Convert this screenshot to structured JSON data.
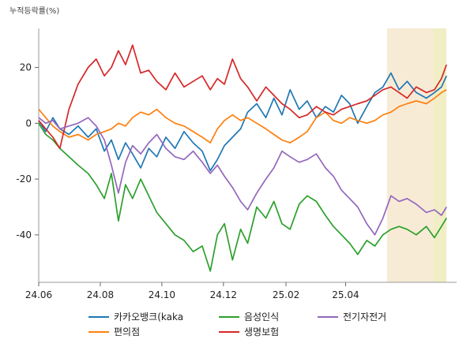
{
  "chart_data": {
    "type": "line",
    "unit_label": "누적등락률(%)",
    "x_ticks": [
      "24.06",
      "24.08",
      "24.10",
      "24.12",
      "25.02",
      "25.04"
    ],
    "x_range": [
      "2024-06-01",
      "2025-07-20"
    ],
    "ylim": [
      -57,
      34
    ],
    "y_ticks": [
      20,
      0,
      -20,
      -40
    ],
    "y_tick_labels": [
      "20",
      "0",
      "-20",
      "-40"
    ],
    "grid": false,
    "legend_position": "bottom",
    "highlight_bands": [
      {
        "start": "2025-05-12",
        "end": "2025-06-27",
        "color": "#f5e6cc"
      },
      {
        "start": "2025-06-27",
        "end": "2025-07-10",
        "color": "#eeeab8"
      }
    ],
    "series": [
      {
        "name": "카카오뱅크(kaka",
        "color": "#1f77b4",
        "points": [
          [
            "2024-06-01",
            1
          ],
          [
            "2024-06-08",
            -3
          ],
          [
            "2024-06-15",
            2
          ],
          [
            "2024-06-22",
            -2
          ],
          [
            "2024-07-01",
            -4
          ],
          [
            "2024-07-10",
            -1
          ],
          [
            "2024-07-20",
            -5
          ],
          [
            "2024-07-28",
            -2
          ],
          [
            "2024-08-05",
            -10
          ],
          [
            "2024-08-12",
            -6
          ],
          [
            "2024-08-19",
            -13
          ],
          [
            "2024-08-26",
            -7
          ],
          [
            "2024-09-02",
            -11
          ],
          [
            "2024-09-10",
            -16
          ],
          [
            "2024-09-18",
            -9
          ],
          [
            "2024-09-26",
            -12
          ],
          [
            "2024-10-05",
            -5
          ],
          [
            "2024-10-14",
            -9
          ],
          [
            "2024-10-23",
            -3
          ],
          [
            "2024-11-01",
            -7
          ],
          [
            "2024-11-10",
            -10
          ],
          [
            "2024-11-18",
            -17
          ],
          [
            "2024-11-25",
            -13
          ],
          [
            "2024-12-02",
            -8
          ],
          [
            "2024-12-10",
            -5
          ],
          [
            "2024-12-18",
            -2
          ],
          [
            "2024-12-25",
            4
          ],
          [
            "2025-01-03",
            7
          ],
          [
            "2025-01-12",
            2
          ],
          [
            "2025-01-20",
            9
          ],
          [
            "2025-01-28",
            3
          ],
          [
            "2025-02-05",
            12
          ],
          [
            "2025-02-14",
            5
          ],
          [
            "2025-02-22",
            8
          ],
          [
            "2025-03-03",
            2
          ],
          [
            "2025-03-12",
            6
          ],
          [
            "2025-03-20",
            4
          ],
          [
            "2025-03-28",
            10
          ],
          [
            "2025-04-05",
            7
          ],
          [
            "2025-04-13",
            0
          ],
          [
            "2025-04-22",
            6
          ],
          [
            "2025-04-30",
            11
          ],
          [
            "2025-05-08",
            13
          ],
          [
            "2025-05-16",
            18
          ],
          [
            "2025-05-24",
            12
          ],
          [
            "2025-06-01",
            15
          ],
          [
            "2025-06-10",
            11
          ],
          [
            "2025-06-20",
            9
          ],
          [
            "2025-06-28",
            11
          ],
          [
            "2025-07-05",
            13
          ],
          [
            "2025-07-10",
            17
          ]
        ]
      },
      {
        "name": "편의점",
        "color": "#ff7f0e",
        "points": [
          [
            "2024-06-01",
            5
          ],
          [
            "2024-06-08",
            2
          ],
          [
            "2024-06-15",
            -1
          ],
          [
            "2024-06-22",
            -3
          ],
          [
            "2024-07-01",
            -5
          ],
          [
            "2024-07-10",
            -4
          ],
          [
            "2024-07-20",
            -6
          ],
          [
            "2024-07-28",
            -4
          ],
          [
            "2024-08-05",
            -3
          ],
          [
            "2024-08-12",
            -2
          ],
          [
            "2024-08-19",
            0
          ],
          [
            "2024-08-26",
            -1
          ],
          [
            "2024-09-02",
            2
          ],
          [
            "2024-09-10",
            4
          ],
          [
            "2024-09-18",
            3
          ],
          [
            "2024-09-26",
            5
          ],
          [
            "2024-10-05",
            2
          ],
          [
            "2024-10-14",
            0
          ],
          [
            "2024-10-23",
            -1
          ],
          [
            "2024-11-01",
            -3
          ],
          [
            "2024-11-10",
            -5
          ],
          [
            "2024-11-18",
            -7
          ],
          [
            "2024-11-25",
            -2
          ],
          [
            "2024-12-02",
            1
          ],
          [
            "2024-12-10",
            3
          ],
          [
            "2024-12-18",
            1
          ],
          [
            "2024-12-25",
            2
          ],
          [
            "2025-01-03",
            0
          ],
          [
            "2025-01-12",
            -2
          ],
          [
            "2025-01-20",
            -4
          ],
          [
            "2025-01-28",
            -6
          ],
          [
            "2025-02-05",
            -7
          ],
          [
            "2025-02-14",
            -5
          ],
          [
            "2025-02-22",
            -3
          ],
          [
            "2025-03-03",
            2
          ],
          [
            "2025-03-12",
            4
          ],
          [
            "2025-03-20",
            1
          ],
          [
            "2025-03-28",
            0
          ],
          [
            "2025-04-05",
            2
          ],
          [
            "2025-04-13",
            1
          ],
          [
            "2025-04-22",
            0
          ],
          [
            "2025-04-30",
            1
          ],
          [
            "2025-05-08",
            3
          ],
          [
            "2025-05-16",
            4
          ],
          [
            "2025-05-24",
            6
          ],
          [
            "2025-06-01",
            7
          ],
          [
            "2025-06-10",
            8
          ],
          [
            "2025-06-20",
            7
          ],
          [
            "2025-06-28",
            9
          ],
          [
            "2025-07-05",
            11
          ],
          [
            "2025-07-10",
            12
          ]
        ]
      },
      {
        "name": "음성인식",
        "color": "#2ca02c",
        "points": [
          [
            "2024-06-01",
            0
          ],
          [
            "2024-06-08",
            -4
          ],
          [
            "2024-06-15",
            -6
          ],
          [
            "2024-06-22",
            -9
          ],
          [
            "2024-07-01",
            -12
          ],
          [
            "2024-07-10",
            -15
          ],
          [
            "2024-07-20",
            -18
          ],
          [
            "2024-07-28",
            -22
          ],
          [
            "2024-08-05",
            -27
          ],
          [
            "2024-08-12",
            -18
          ],
          [
            "2024-08-19",
            -35
          ],
          [
            "2024-08-26",
            -22
          ],
          [
            "2024-09-02",
            -27
          ],
          [
            "2024-09-10",
            -20
          ],
          [
            "2024-09-18",
            -26
          ],
          [
            "2024-09-26",
            -32
          ],
          [
            "2024-10-05",
            -36
          ],
          [
            "2024-10-14",
            -40
          ],
          [
            "2024-10-23",
            -42
          ],
          [
            "2024-11-01",
            -46
          ],
          [
            "2024-11-10",
            -44
          ],
          [
            "2024-11-18",
            -53
          ],
          [
            "2024-11-25",
            -40
          ],
          [
            "2024-12-02",
            -36
          ],
          [
            "2024-12-10",
            -49
          ],
          [
            "2024-12-18",
            -38
          ],
          [
            "2024-12-25",
            -43
          ],
          [
            "2025-01-03",
            -30
          ],
          [
            "2025-01-12",
            -34
          ],
          [
            "2025-01-20",
            -28
          ],
          [
            "2025-01-28",
            -36
          ],
          [
            "2025-02-05",
            -38
          ],
          [
            "2025-02-14",
            -29
          ],
          [
            "2025-02-22",
            -26
          ],
          [
            "2025-03-03",
            -28
          ],
          [
            "2025-03-12",
            -33
          ],
          [
            "2025-03-20",
            -37
          ],
          [
            "2025-03-28",
            -40
          ],
          [
            "2025-04-05",
            -43
          ],
          [
            "2025-04-13",
            -47
          ],
          [
            "2025-04-22",
            -42
          ],
          [
            "2025-04-30",
            -44
          ],
          [
            "2025-05-08",
            -40
          ],
          [
            "2025-05-16",
            -38
          ],
          [
            "2025-05-24",
            -37
          ],
          [
            "2025-06-01",
            -38
          ],
          [
            "2025-06-10",
            -40
          ],
          [
            "2025-06-20",
            -37
          ],
          [
            "2025-06-28",
            -41
          ],
          [
            "2025-07-05",
            -37
          ],
          [
            "2025-07-10",
            -34
          ]
        ]
      },
      {
        "name": "생명보험",
        "color": "#d62728",
        "points": [
          [
            "2024-06-01",
            1
          ],
          [
            "2024-06-08",
            -2
          ],
          [
            "2024-06-15",
            -5
          ],
          [
            "2024-06-22",
            -9
          ],
          [
            "2024-07-01",
            5
          ],
          [
            "2024-07-10",
            14
          ],
          [
            "2024-07-20",
            20
          ],
          [
            "2024-07-28",
            23
          ],
          [
            "2024-08-05",
            17
          ],
          [
            "2024-08-12",
            20
          ],
          [
            "2024-08-19",
            26
          ],
          [
            "2024-08-26",
            21
          ],
          [
            "2024-09-02",
            28
          ],
          [
            "2024-09-10",
            18
          ],
          [
            "2024-09-18",
            19
          ],
          [
            "2024-09-26",
            15
          ],
          [
            "2024-10-05",
            12
          ],
          [
            "2024-10-14",
            18
          ],
          [
            "2024-10-23",
            13
          ],
          [
            "2024-11-01",
            15
          ],
          [
            "2024-11-10",
            17
          ],
          [
            "2024-11-18",
            12
          ],
          [
            "2024-11-25",
            16
          ],
          [
            "2024-12-02",
            14
          ],
          [
            "2024-12-10",
            23
          ],
          [
            "2024-12-18",
            16
          ],
          [
            "2024-12-25",
            13
          ],
          [
            "2025-01-03",
            8
          ],
          [
            "2025-01-12",
            13
          ],
          [
            "2025-01-20",
            10
          ],
          [
            "2025-01-28",
            7
          ],
          [
            "2025-02-05",
            5
          ],
          [
            "2025-02-14",
            2
          ],
          [
            "2025-02-22",
            3
          ],
          [
            "2025-03-03",
            6
          ],
          [
            "2025-03-12",
            4
          ],
          [
            "2025-03-20",
            3
          ],
          [
            "2025-03-28",
            5
          ],
          [
            "2025-04-05",
            6
          ],
          [
            "2025-04-13",
            7
          ],
          [
            "2025-04-22",
            8
          ],
          [
            "2025-04-30",
            10
          ],
          [
            "2025-05-08",
            12
          ],
          [
            "2025-05-16",
            13
          ],
          [
            "2025-05-24",
            11
          ],
          [
            "2025-06-01",
            9
          ],
          [
            "2025-06-10",
            13
          ],
          [
            "2025-06-20",
            11
          ],
          [
            "2025-06-28",
            12
          ],
          [
            "2025-07-05",
            16
          ],
          [
            "2025-07-10",
            21
          ]
        ]
      },
      {
        "name": "전기자전거",
        "color": "#9467bd",
        "points": [
          [
            "2024-06-01",
            2
          ],
          [
            "2024-06-08",
            0
          ],
          [
            "2024-06-15",
            1
          ],
          [
            "2024-06-22",
            -2
          ],
          [
            "2024-07-01",
            -1
          ],
          [
            "2024-07-10",
            0
          ],
          [
            "2024-07-20",
            2
          ],
          [
            "2024-07-28",
            -1
          ],
          [
            "2024-08-05",
            -6
          ],
          [
            "2024-08-12",
            -15
          ],
          [
            "2024-08-19",
            -25
          ],
          [
            "2024-08-26",
            -14
          ],
          [
            "2024-09-02",
            -8
          ],
          [
            "2024-09-10",
            -11
          ],
          [
            "2024-09-18",
            -7
          ],
          [
            "2024-09-26",
            -4
          ],
          [
            "2024-10-05",
            -9
          ],
          [
            "2024-10-14",
            -12
          ],
          [
            "2024-10-23",
            -13
          ],
          [
            "2024-11-01",
            -10
          ],
          [
            "2024-11-10",
            -14
          ],
          [
            "2024-11-18",
            -18
          ],
          [
            "2024-11-25",
            -15
          ],
          [
            "2024-12-02",
            -19
          ],
          [
            "2024-12-10",
            -23
          ],
          [
            "2024-12-18",
            -28
          ],
          [
            "2024-12-25",
            -31
          ],
          [
            "2025-01-03",
            -25
          ],
          [
            "2025-01-12",
            -20
          ],
          [
            "2025-01-20",
            -16
          ],
          [
            "2025-01-28",
            -10
          ],
          [
            "2025-02-05",
            -12
          ],
          [
            "2025-02-14",
            -14
          ],
          [
            "2025-02-22",
            -13
          ],
          [
            "2025-03-03",
            -11
          ],
          [
            "2025-03-12",
            -16
          ],
          [
            "2025-03-20",
            -19
          ],
          [
            "2025-03-28",
            -24
          ],
          [
            "2025-04-05",
            -27
          ],
          [
            "2025-04-13",
            -30
          ],
          [
            "2025-04-22",
            -36
          ],
          [
            "2025-04-30",
            -40
          ],
          [
            "2025-05-08",
            -34
          ],
          [
            "2025-05-16",
            -26
          ],
          [
            "2025-05-24",
            -28
          ],
          [
            "2025-06-01",
            -27
          ],
          [
            "2025-06-10",
            -29
          ],
          [
            "2025-06-20",
            -32
          ],
          [
            "2025-06-28",
            -31
          ],
          [
            "2025-07-05",
            -33
          ],
          [
            "2025-07-10",
            -30
          ]
        ]
      }
    ]
  }
}
